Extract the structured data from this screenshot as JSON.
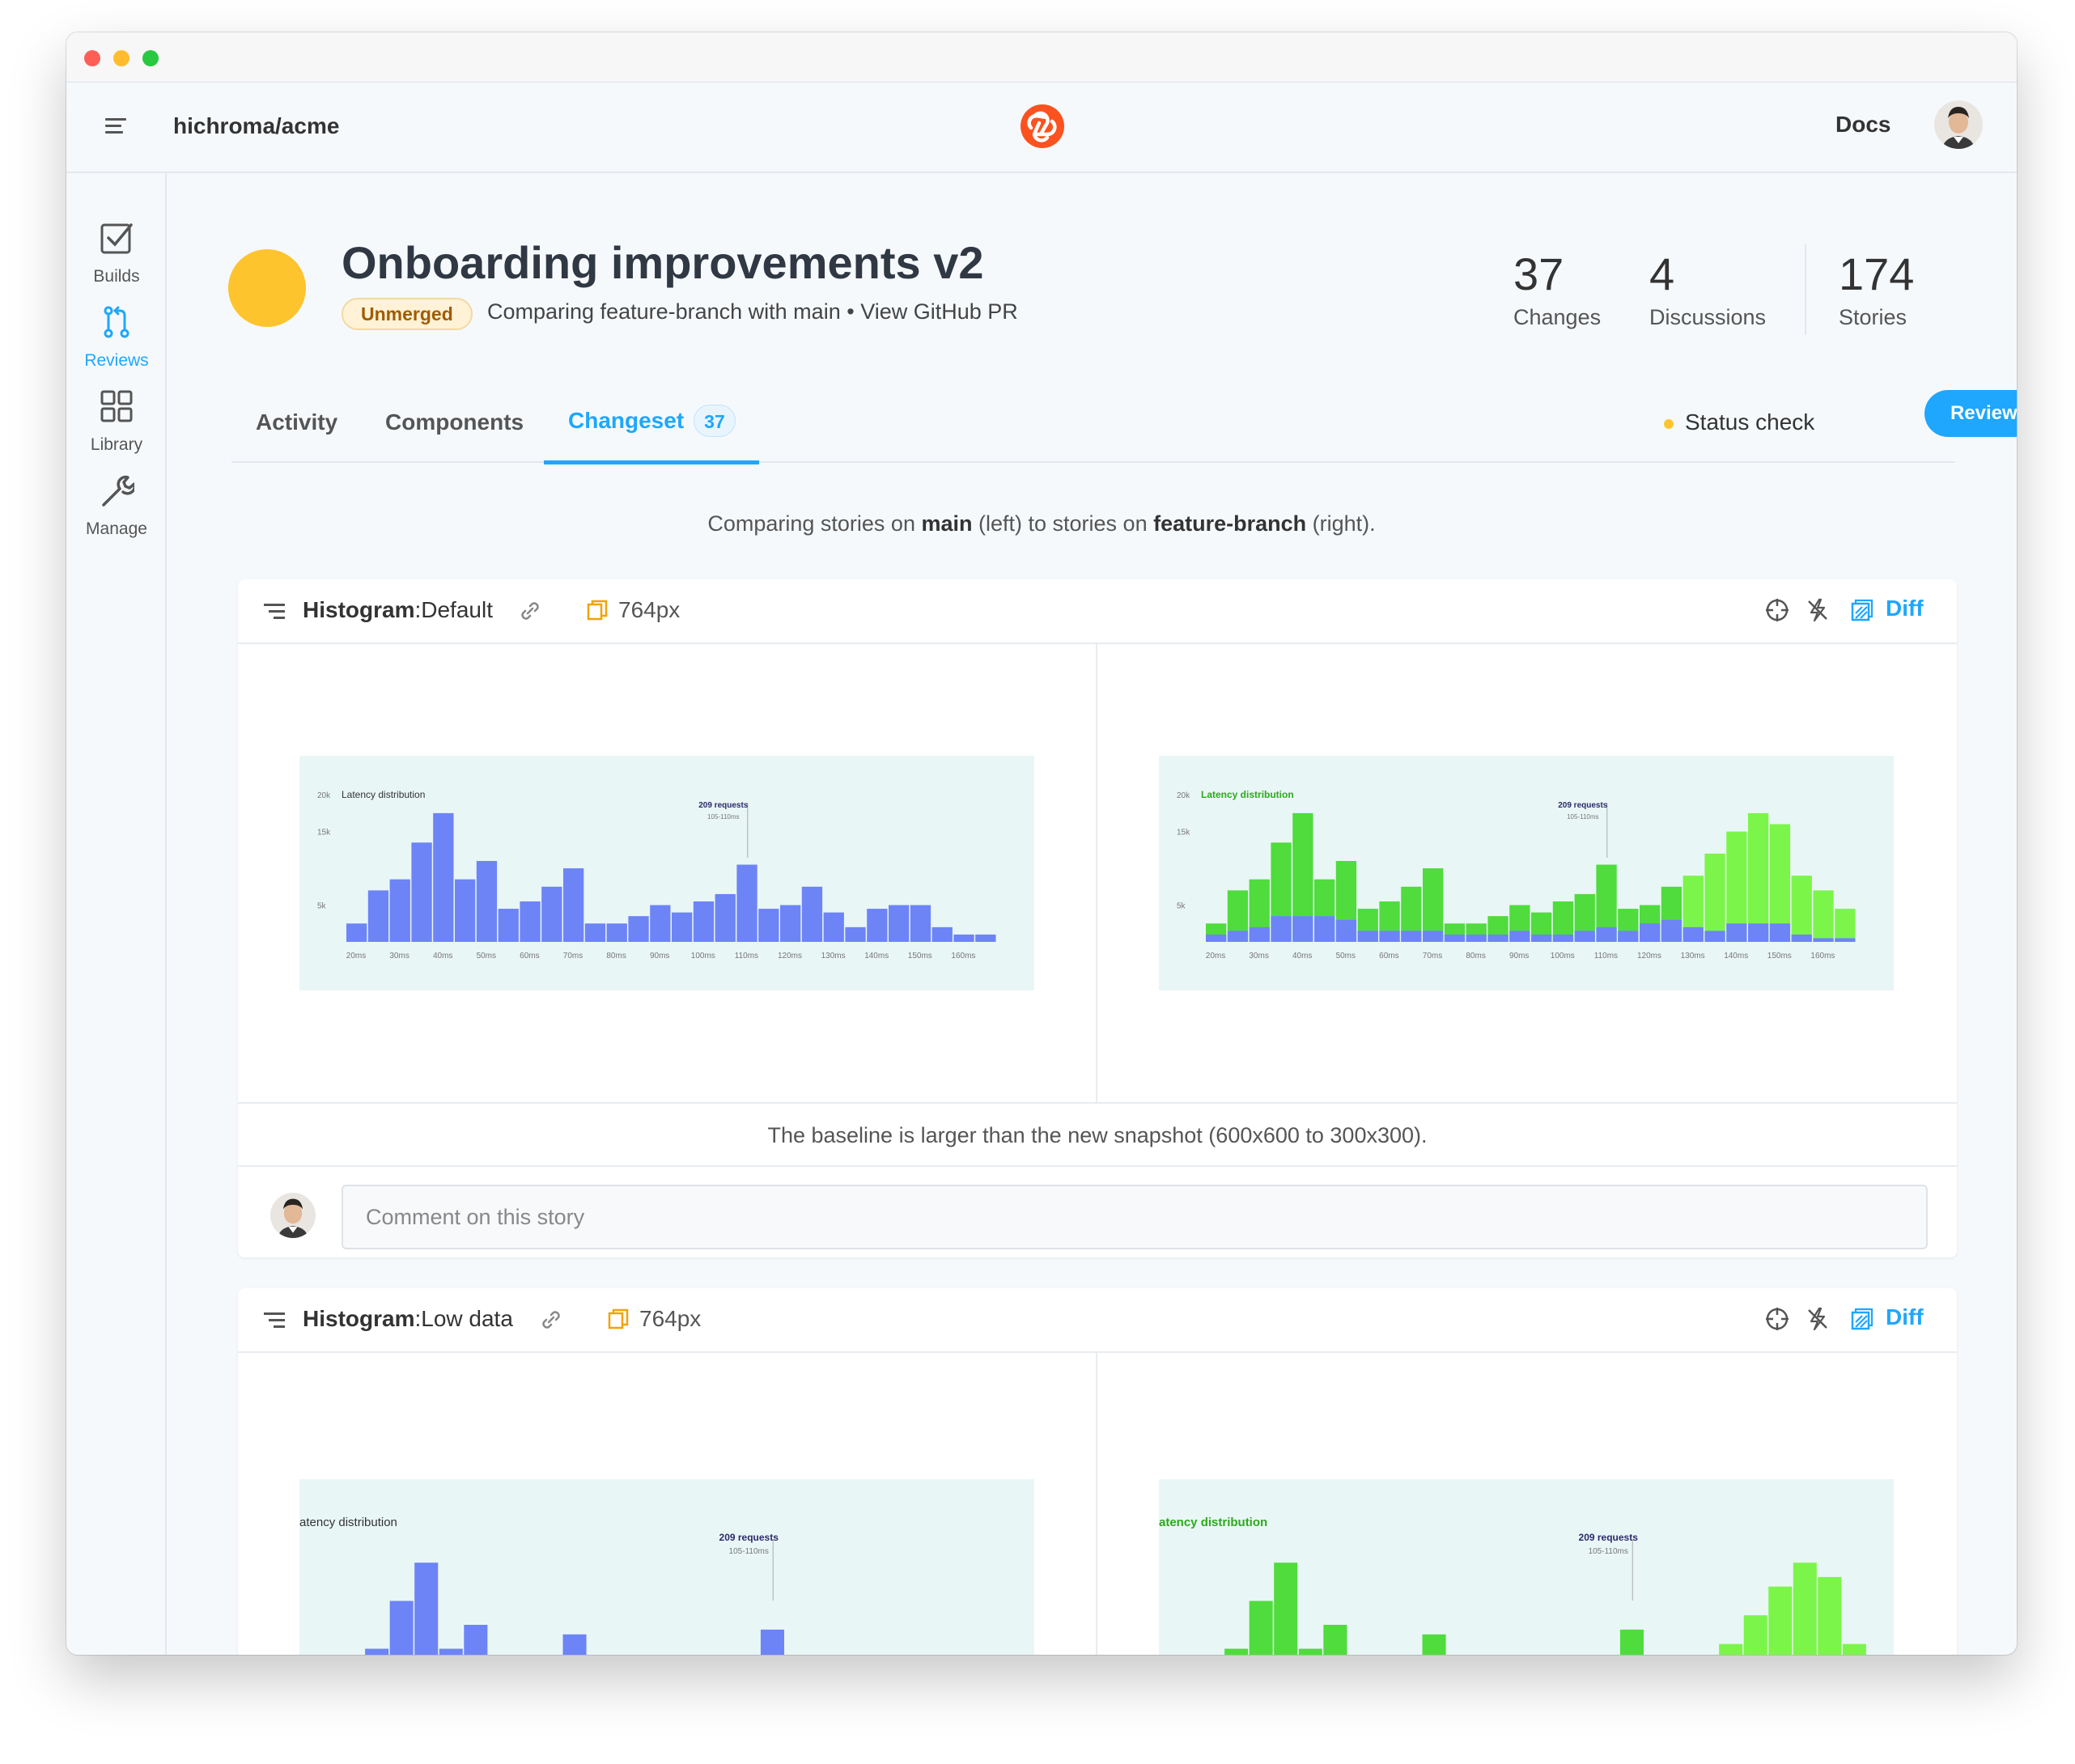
{
  "header": {
    "repo": "hichroma/acme",
    "docs_label": "Docs"
  },
  "sidebar": {
    "items": [
      {
        "label": "Builds",
        "icon": "checkbox-icon"
      },
      {
        "label": "Reviews",
        "icon": "pull-request-icon",
        "active": true
      },
      {
        "label": "Library",
        "icon": "grid-icon"
      },
      {
        "label": "Manage",
        "icon": "wrench-icon"
      }
    ]
  },
  "pr": {
    "title": "Onboarding improvements v2",
    "status_badge": "Unmerged",
    "comparing_text": "Comparing feature-branch with main",
    "separator": "•",
    "github_link": "View GitHub PR",
    "stats": [
      {
        "value": "37",
        "label": "Changes"
      },
      {
        "value": "4",
        "label": "Discussions"
      },
      {
        "value": "174",
        "label": "Stories"
      }
    ]
  },
  "tabs": {
    "items": [
      {
        "label": "Activity"
      },
      {
        "label": "Components"
      },
      {
        "label": "Changeset",
        "count": "37",
        "active": true
      }
    ],
    "status_check": "Status check",
    "review_button": "Review now"
  },
  "compare_note": {
    "prefix": "Comparing stories on ",
    "base": "main",
    "middle": " (left) to stories on ",
    "head": "feature-branch",
    "suffix": " (right)."
  },
  "stories": [
    {
      "component": "Histogram",
      "separator": ":",
      "story": "Default",
      "viewport": "764px",
      "diff_label": "Diff",
      "baseline_note": "The baseline is larger than the new snapshot (600x600 to 300x300).",
      "comment_placeholder": "Comment on this story"
    },
    {
      "component": "Histogram",
      "separator": ":",
      "story": "Low data",
      "viewport": "764px",
      "diff_label": "Diff"
    }
  ],
  "snapshot": {
    "title": "Latency distribution",
    "title_clipped": "atency distribution",
    "title_glitch": "Latency distribution",
    "annotation": "209 requests",
    "annotation_sub": "105-110ms",
    "y_ticks": [
      "20k",
      "15k",
      "5k"
    ],
    "x_ticks": [
      "20ms",
      "30ms",
      "40ms",
      "50ms",
      "60ms",
      "70ms",
      "80ms",
      "90ms",
      "100ms",
      "110ms",
      "120ms",
      "130ms",
      "140ms",
      "150ms",
      "160ms"
    ],
    "colors": {
      "baseline": "#6d84f7",
      "added": "#4fdc3c",
      "added_light": "#7cf54a",
      "background": "#e9f6f6"
    }
  },
  "chart_data": [
    {
      "type": "bar",
      "title": "Latency distribution",
      "series": [
        {
          "name": "main",
          "values": [
            2500,
            7000,
            8500,
            13500,
            17500,
            8500,
            11000,
            4500,
            5500,
            7500,
            10000,
            2500,
            2500,
            3500,
            5000,
            4000,
            5500,
            6500,
            10500,
            4500,
            5000,
            7500,
            4000,
            2000,
            4500,
            5000,
            5000,
            2000,
            1000,
            1000
          ]
        }
      ],
      "ylim": [
        0,
        22000
      ]
    },
    {
      "type": "bar",
      "title": "Latency distribution",
      "series": [
        {
          "name": "main",
          "values": [
            1000,
            1500,
            2000,
            3500,
            3500,
            3500,
            3000,
            1500,
            1500,
            1500,
            1500,
            1000,
            1000,
            1000,
            1500,
            1000,
            1000,
            1500,
            2000,
            1500,
            2500,
            3000,
            2000,
            1500,
            2500,
            2500,
            2500,
            1000,
            500,
            500
          ]
        },
        {
          "name": "feature-branch",
          "values": [
            2500,
            7000,
            8500,
            13500,
            17500,
            8500,
            11000,
            4500,
            5500,
            7500,
            10000,
            2500,
            2500,
            3500,
            5000,
            4000,
            5500,
            6500,
            10500,
            4500,
            5000,
            7500,
            9000,
            12000,
            15000,
            17500,
            16000,
            9000,
            7000,
            4500
          ]
        }
      ],
      "ylim": [
        0,
        22000
      ]
    }
  ]
}
